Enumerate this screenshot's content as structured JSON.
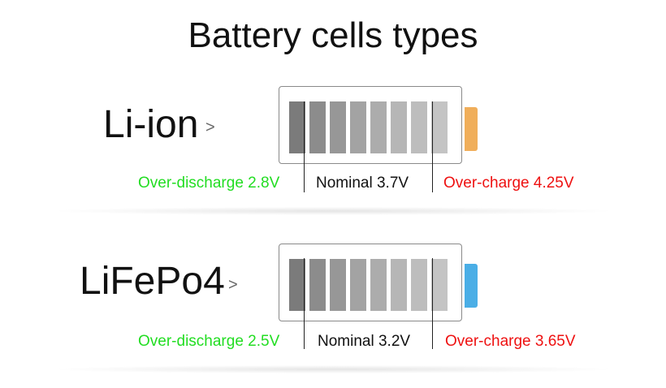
{
  "title": "Battery cells types",
  "cell_colors": [
    "#7b7b7b",
    "#8c8c8c",
    "#979797",
    "#a3a3a3",
    "#acacac",
    "#b6b6b6",
    "#bdbdbd",
    "#c4c4c4"
  ],
  "batteries": [
    {
      "name": "Li-ion",
      "chevron": ">",
      "terminal_color": "#f0ae5a",
      "over_discharge": "Over-discharge 2.8V",
      "nominal": "Nominal 3.7V",
      "over_charge": "Over-charge 4.25V",
      "over_discharge_color": "#22dd22",
      "nominal_color": "#111111",
      "over_charge_color": "#ee1111"
    },
    {
      "name": "LiFePo4",
      "chevron": ">",
      "terminal_color": "#4aaee6",
      "over_discharge": "Over-discharge 2.5V",
      "nominal": "Nominal 3.2V",
      "over_charge": "Over-charge 3.65V",
      "over_discharge_color": "#22dd22",
      "nominal_color": "#111111",
      "over_charge_color": "#ee1111"
    }
  ]
}
